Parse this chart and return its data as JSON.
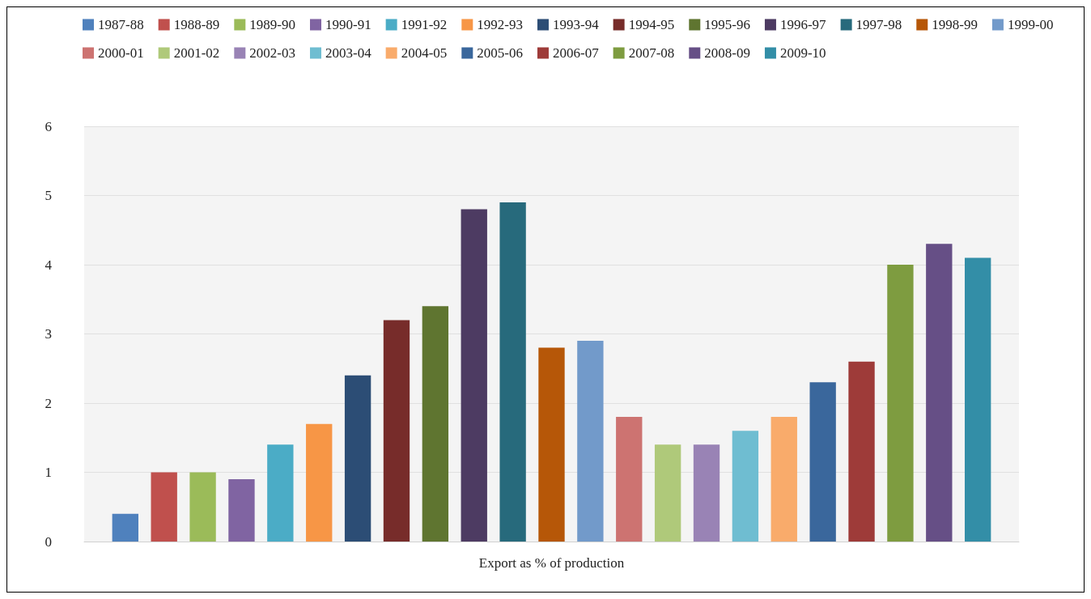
{
  "chart_data": {
    "type": "bar",
    "categories": [
      "Export as % of production"
    ],
    "ylim": [
      0,
      6
    ],
    "yticks": [
      0,
      1,
      2,
      3,
      4,
      5,
      6
    ],
    "grid": "y",
    "legend": "top",
    "series": [
      {
        "name": "1987-88",
        "color": "#4f81bd",
        "values": [
          0.4
        ]
      },
      {
        "name": "1988-89",
        "color": "#c0504d",
        "values": [
          1.0
        ]
      },
      {
        "name": "1989-90",
        "color": "#9bbb59",
        "values": [
          1.0
        ]
      },
      {
        "name": "1990-91",
        "color": "#8064a2",
        "values": [
          0.9
        ]
      },
      {
        "name": "1991-92",
        "color": "#4bacc6",
        "values": [
          1.4
        ]
      },
      {
        "name": "1992-93",
        "color": "#f79646",
        "values": [
          1.7
        ]
      },
      {
        "name": "1993-94",
        "color": "#2c4d75",
        "values": [
          2.4
        ]
      },
      {
        "name": "1994-95",
        "color": "#772c2a",
        "values": [
          3.2
        ]
      },
      {
        "name": "1995-96",
        "color": "#5f7530",
        "values": [
          3.4
        ]
      },
      {
        "name": "1996-97",
        "color": "#4d3b62",
        "values": [
          4.8
        ]
      },
      {
        "name": "1997-98",
        "color": "#276a7c",
        "values": [
          4.9
        ]
      },
      {
        "name": "1998-99",
        "color": "#b65708",
        "values": [
          2.8
        ]
      },
      {
        "name": "1999-00",
        "color": "#729aca",
        "values": [
          2.9
        ]
      },
      {
        "name": "2000-01",
        "color": "#cd7371",
        "values": [
          1.8
        ]
      },
      {
        "name": "2001-02",
        "color": "#afc97a",
        "values": [
          1.4
        ]
      },
      {
        "name": "2002-03",
        "color": "#9983b5",
        "values": [
          1.4
        ]
      },
      {
        "name": "2003-04",
        "color": "#6fbdd1",
        "values": [
          1.6
        ]
      },
      {
        "name": "2004-05",
        "color": "#f9ab6b",
        "values": [
          1.8
        ]
      },
      {
        "name": "2005-06",
        "color": "#3a679c",
        "values": [
          2.3
        ]
      },
      {
        "name": "2006-07",
        "color": "#9e3b39",
        "values": [
          2.6
        ]
      },
      {
        "name": "2007-08",
        "color": "#7e9c40",
        "values": [
          4.0
        ]
      },
      {
        "name": "2008-09",
        "color": "#664f86",
        "values": [
          4.3
        ]
      },
      {
        "name": "2009-10",
        "color": "#338ea7",
        "values": [
          4.1
        ]
      }
    ]
  }
}
